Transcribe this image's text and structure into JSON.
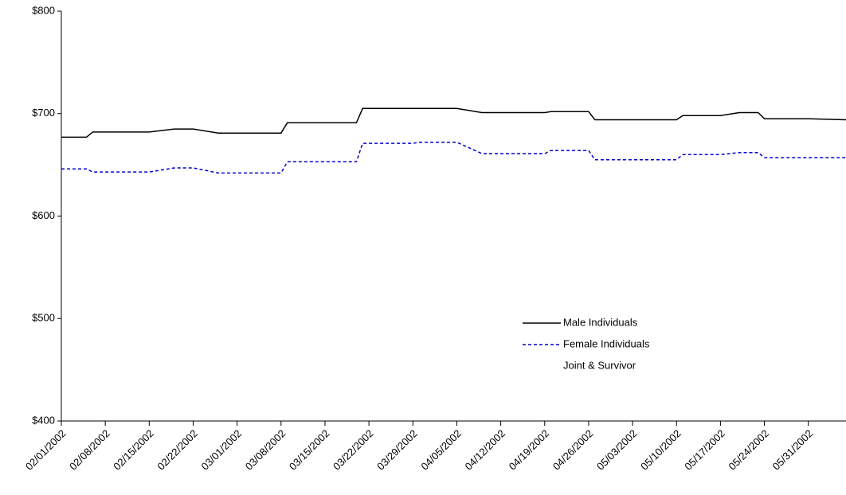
{
  "chart_data": {
    "type": "line",
    "xlim": [
      "02/01/2002",
      "06/06/2002"
    ],
    "xticks": [
      "02/01/2002",
      "02/08/2002",
      "02/15/2002",
      "02/22/2002",
      "03/01/2002",
      "03/08/2002",
      "03/15/2002",
      "03/22/2002",
      "03/29/2002",
      "04/05/2002",
      "04/12/2002",
      "04/19/2002",
      "04/26/2002",
      "05/03/2002",
      "05/10/2002",
      "05/17/2002",
      "05/24/2002",
      "05/31/2002"
    ],
    "ylim": [
      400,
      800
    ],
    "yticks": [
      {
        "value": 400,
        "label": "$400"
      },
      {
        "value": 500,
        "label": "$500"
      },
      {
        "value": 600,
        "label": "$600"
      },
      {
        "value": 700,
        "label": "$700"
      },
      {
        "value": 800,
        "label": "$800"
      }
    ],
    "series": [
      {
        "name": "Male Individuals",
        "color": "#000000",
        "dash": "solid",
        "x": [
          "02/01/2002",
          "02/05/2002",
          "02/06/2002",
          "02/15/2002",
          "02/19/2002",
          "02/22/2002",
          "02/26/2002",
          "03/08/2002",
          "03/09/2002",
          "03/20/2002",
          "03/21/2002",
          "04/05/2002",
          "04/09/2002",
          "04/19/2002",
          "04/20/2002",
          "04/26/2002",
          "04/27/2002",
          "05/10/2002",
          "05/11/2002",
          "05/17/2002",
          "05/20/2002",
          "05/23/2002",
          "05/24/2002",
          "05/31/2002",
          "06/06/2002"
        ],
        "values": [
          677,
          677,
          682,
          682,
          685,
          685,
          681,
          681,
          691,
          691,
          705,
          705,
          701,
          701,
          702,
          702,
          694,
          694,
          698,
          698,
          701,
          701,
          695,
          695,
          694
        ]
      },
      {
        "name": "Female Individuals",
        "color": "#0000cc",
        "dash": "dashed",
        "x": [
          "02/01/2002",
          "02/05/2002",
          "02/06/2002",
          "02/15/2002",
          "02/19/2002",
          "02/22/2002",
          "02/26/2002",
          "03/08/2002",
          "03/09/2002",
          "03/20/2002",
          "03/21/2002",
          "03/29/2002",
          "03/30/2002",
          "04/05/2002",
          "04/09/2002",
          "04/19/2002",
          "04/20/2002",
          "04/26/2002",
          "04/27/2002",
          "05/10/2002",
          "05/11/2002",
          "05/17/2002",
          "05/20/2002",
          "05/23/2002",
          "05/24/2002",
          "06/06/2002"
        ],
        "values": [
          646,
          646,
          643,
          643,
          647,
          647,
          642,
          642,
          653,
          653,
          671,
          671,
          672,
          672,
          661,
          661,
          664,
          664,
          655,
          655,
          660,
          660,
          662,
          662,
          657,
          657
        ]
      },
      {
        "name": "Joint & Survivor"
      }
    ]
  }
}
